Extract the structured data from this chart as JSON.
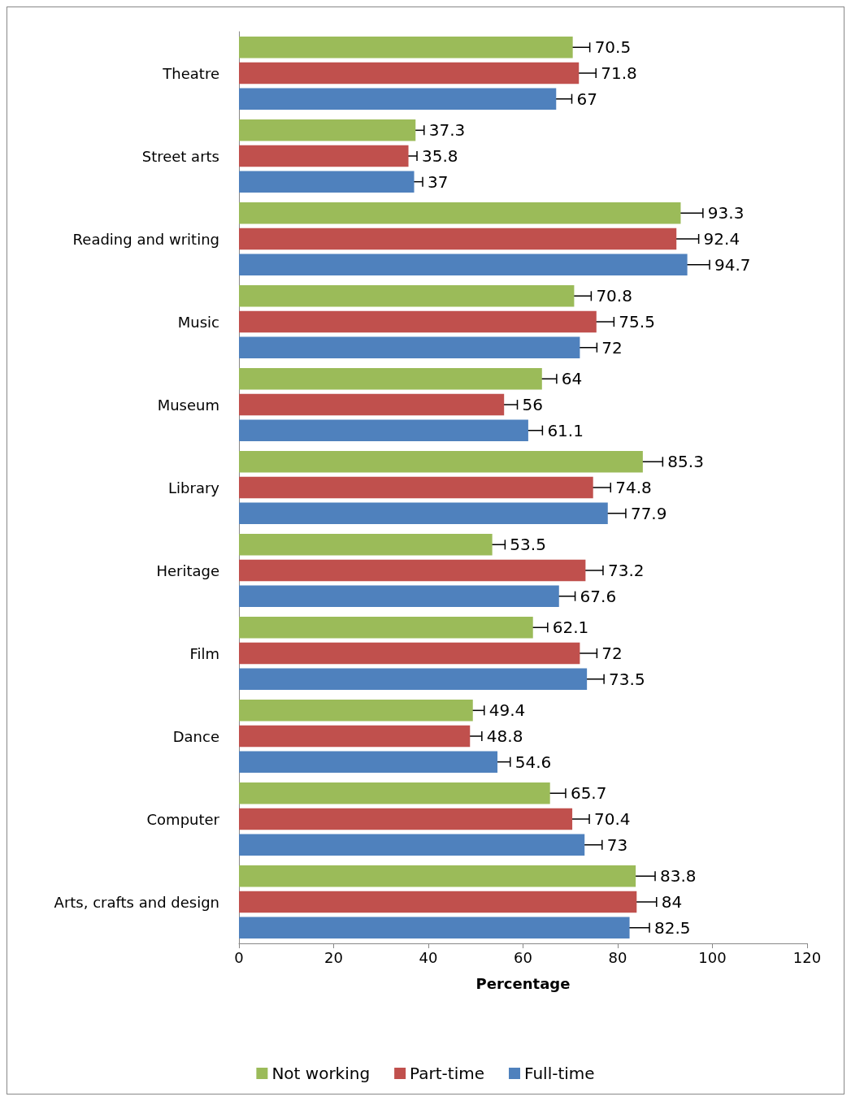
{
  "chart_data": {
    "type": "bar",
    "orientation": "horizontal",
    "xlabel": "Percentage",
    "categories": [
      "Theatre",
      "Street arts",
      "Reading and writing",
      "Music",
      "Museum",
      "Library",
      "Heritage",
      "Film",
      "Dance",
      "Computer",
      "Arts, crafts and design"
    ],
    "series": [
      {
        "name": "Not working",
        "color": "#9bbb59",
        "values": [
          70.5,
          37.3,
          93.3,
          70.8,
          64,
          85.3,
          53.5,
          62.1,
          49.4,
          65.7,
          83.8
        ],
        "errors": [
          3.6,
          1.8,
          4.7,
          3.6,
          3.1,
          4.2,
          2.7,
          3.1,
          2.4,
          3.3,
          4.1
        ]
      },
      {
        "name": "Part-time",
        "color": "#c0504d",
        "values": [
          71.8,
          35.8,
          92.4,
          75.5,
          56,
          74.8,
          73.2,
          72,
          48.8,
          70.4,
          84
        ],
        "errors": [
          3.6,
          1.8,
          4.7,
          3.7,
          2.8,
          3.7,
          3.7,
          3.6,
          2.5,
          3.6,
          4.2
        ]
      },
      {
        "name": "Full-time",
        "color": "#4f81bd",
        "values": [
          67,
          37,
          94.7,
          72,
          61.1,
          77.9,
          67.6,
          73.5,
          54.6,
          73,
          82.5
        ],
        "errors": [
          3.3,
          1.8,
          4.7,
          3.6,
          3.0,
          3.8,
          3.4,
          3.6,
          2.7,
          3.7,
          4.2
        ]
      }
    ],
    "xlim": [
      0,
      120
    ],
    "xticks": [
      0,
      20,
      40,
      60,
      80,
      100,
      120
    ],
    "grid": false,
    "legend": "bottom",
    "data_labels": true
  }
}
